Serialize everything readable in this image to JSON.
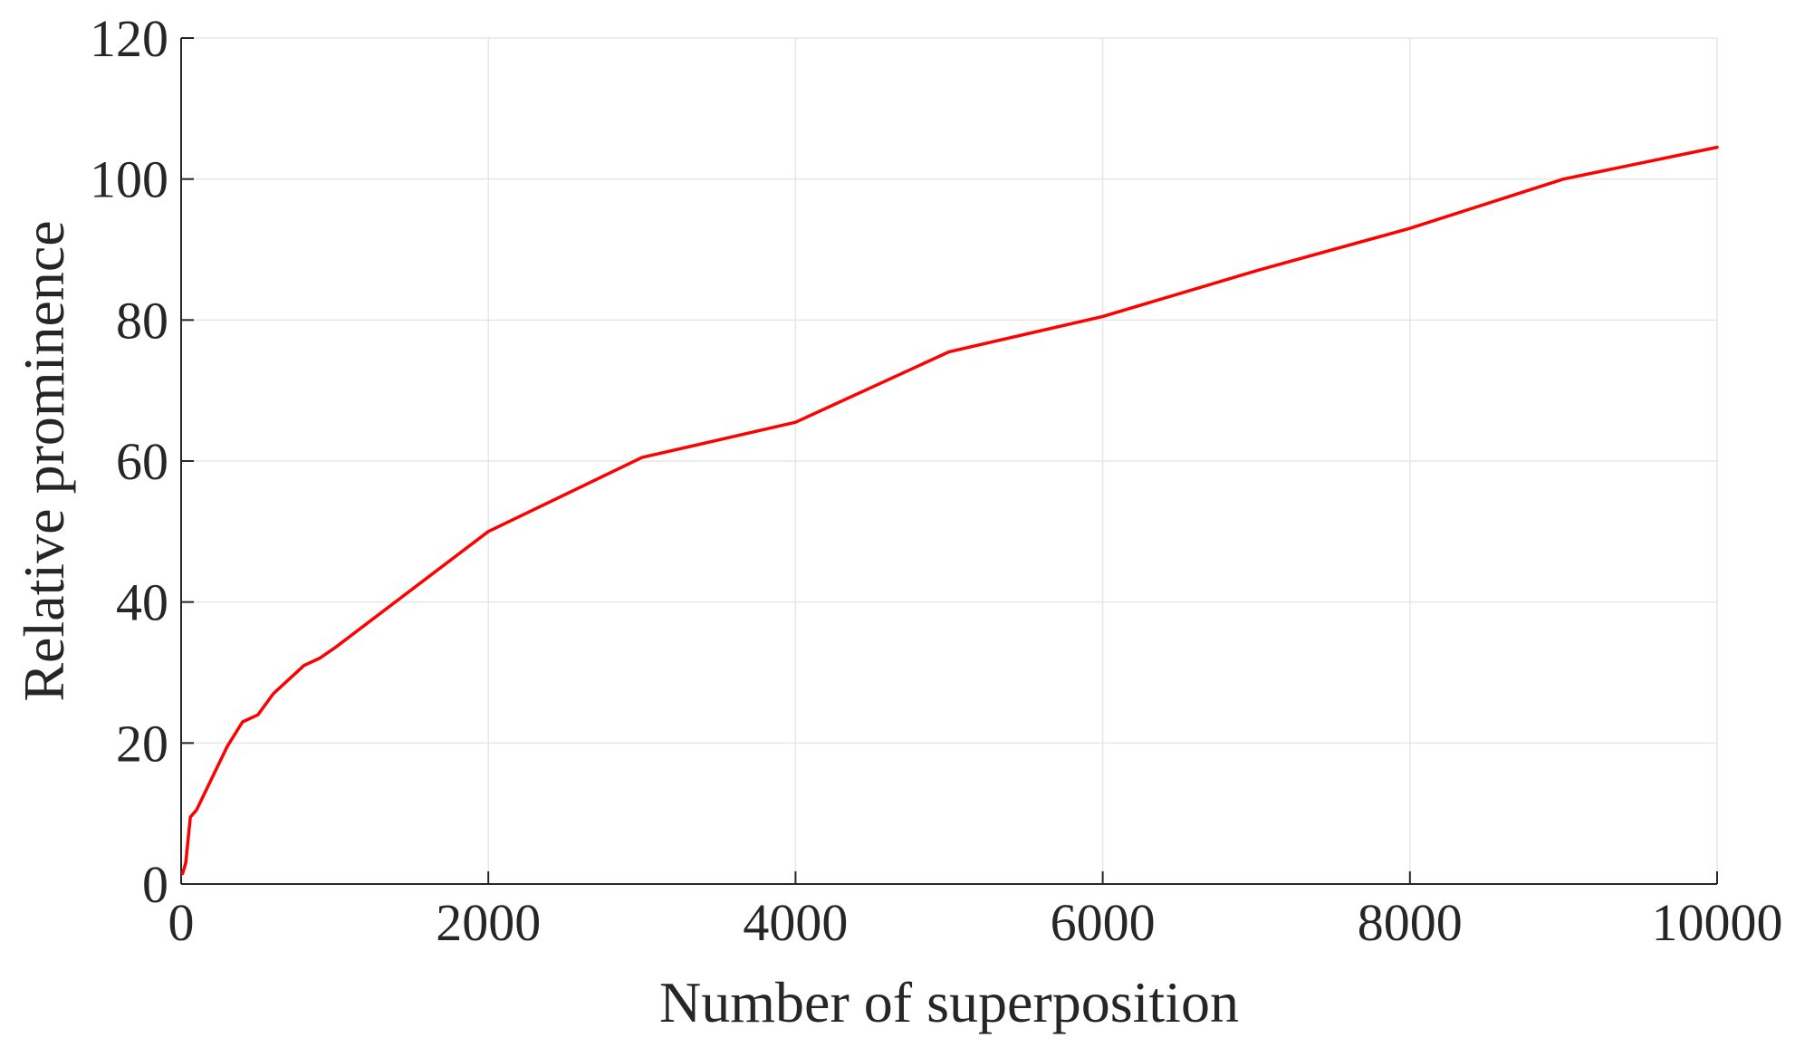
{
  "chart_data": {
    "type": "line",
    "title": "",
    "xlabel": "Number of superposition",
    "ylabel": "Relative prominence",
    "xlim": [
      0,
      10000
    ],
    "ylim": [
      0,
      120
    ],
    "xticks": [
      0,
      2000,
      4000,
      6000,
      8000,
      10000
    ],
    "yticks": [
      0,
      20,
      40,
      60,
      80,
      100,
      120
    ],
    "grid": true,
    "series": [
      {
        "color": "#ff0000",
        "x": [
          10,
          30,
          60,
          80,
          100,
          200,
          300,
          400,
          500,
          600,
          700,
          800,
          900,
          1000,
          2000,
          3000,
          4000,
          5000,
          6000,
          7000,
          8000,
          9000,
          10000
        ],
        "y": [
          1.5,
          3,
          9.5,
          10,
          10.5,
          15,
          19.5,
          23,
          24,
          27,
          29,
          31,
          32,
          33.5,
          50,
          60.5,
          65.5,
          75.5,
          80.5,
          87,
          93,
          100,
          104.5
        ]
      }
    ]
  }
}
